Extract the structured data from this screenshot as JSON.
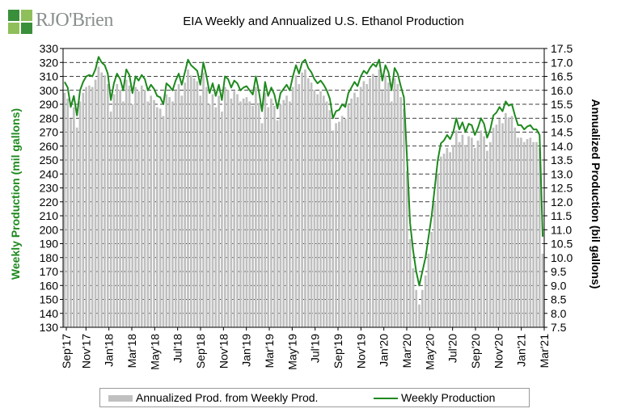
{
  "logo": {
    "text": "RJO'Brien"
  },
  "chart_data": {
    "type": "bar+line",
    "title": "EIA Weekly and Annualized U.S. Ethanol Production",
    "ylabel_left": "Weekly Production (mil gallons)",
    "ylabel_right": "Annualized Production (bil gallons)",
    "ylim_left": [
      130,
      330
    ],
    "ylim_right": [
      7.5,
      17.5
    ],
    "yticks_left": [
      "130",
      "140",
      "150",
      "160",
      "170",
      "180",
      "190",
      "200",
      "210",
      "220",
      "230",
      "240",
      "250",
      "260",
      "270",
      "280",
      "290",
      "300",
      "310",
      "320",
      "330"
    ],
    "yticks_right": [
      "7.5",
      "8.0",
      "8.5",
      "9.0",
      "9.5",
      "10.0",
      "10.5",
      "11.0",
      "11.5",
      "12.0",
      "12.5",
      "13.0",
      "13.5",
      "14.0",
      "14.5",
      "15.0",
      "15.5",
      "16.0",
      "16.5",
      "17.0",
      "17.5"
    ],
    "xticks": [
      "Sep'17",
      "Nov'17",
      "Jan'18",
      "Mar'18",
      "May'18",
      "Jul'18",
      "Sep'18",
      "Nov'18",
      "Jan'19",
      "Mar'19",
      "May'19",
      "Jul'19",
      "Sep'19",
      "Nov'19",
      "Jan'20",
      "Mar'20",
      "May'20",
      "Jul'20",
      "Sep'20",
      "Nov'20",
      "Jan'21",
      "Mar'21"
    ],
    "grid": "horizontal dashed",
    "series": [
      {
        "name": "Annualized Prod. from Weekly Prod.",
        "type": "bar",
        "axis": "right",
        "color": "#c0c0c0"
      },
      {
        "name": "Weekly Production",
        "type": "line",
        "axis": "left",
        "color": "#1e8a1e",
        "values": [
          306,
          302,
          288,
          296,
          282,
          300,
          306,
          310,
          311,
          310,
          315,
          324,
          320,
          318,
          312,
          293,
          305,
          312,
          308,
          300,
          315,
          311,
          298,
          310,
          307,
          311,
          308,
          300,
          304,
          301,
          296,
          295,
          290,
          305,
          303,
          300,
          307,
          312,
          304,
          313,
          322,
          318,
          316,
          314,
          304,
          320,
          310,
          298,
          305,
          296,
          304,
          293,
          310,
          308,
          302,
          307,
          305,
          300,
          302,
          303,
          300,
          297,
          310,
          299,
          285,
          306,
          296,
          302,
          297,
          287,
          298,
          301,
          304,
          300,
          310,
          318,
          312,
          320,
          322,
          316,
          313,
          308,
          305,
          307,
          304,
          300,
          294,
          280,
          285,
          286,
          290,
          288,
          298,
          302,
          306,
          303,
          310,
          314,
          312,
          316,
          319,
          317,
          322,
          307,
          318,
          313,
          300,
          316,
          312,
          303,
          295,
          252,
          205,
          185,
          170,
          160,
          170,
          180,
          195,
          210,
          230,
          250,
          262,
          264,
          268,
          265,
          270,
          280,
          272,
          277,
          270,
          276,
          275,
          268,
          273,
          280,
          276,
          266,
          272,
          282,
          284,
          288,
          285,
          292,
          289,
          290,
          282,
          275,
          275,
          272,
          274,
          275,
          272,
          272,
          268,
          195
        ]
      }
    ]
  },
  "legend": {
    "bar_label": "Annualized Prod. from Weekly Prod.",
    "line_label": "Weekly Production"
  }
}
